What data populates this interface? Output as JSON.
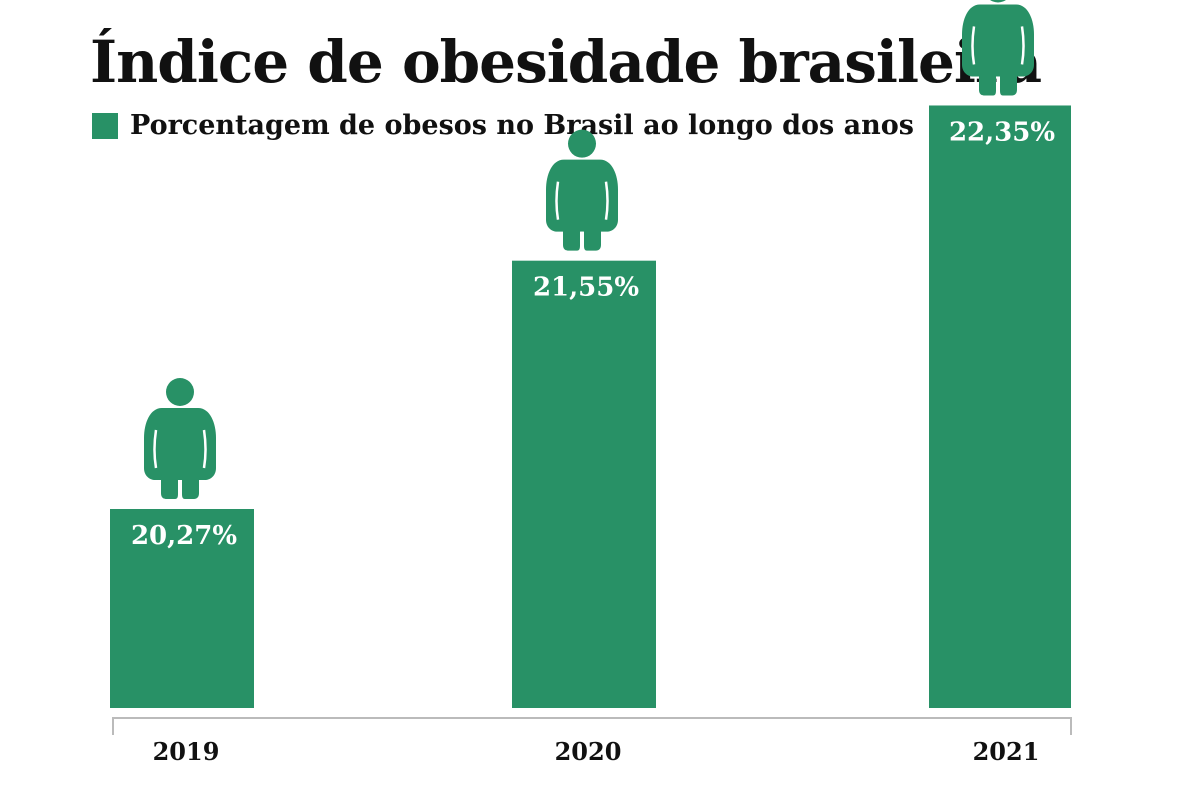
{
  "chart_data": {
    "type": "bar",
    "title": "Índice de obesidade brasileira",
    "legend": "Porcentagem de obesos no Brasil ao longo dos anos",
    "categories": [
      "2019",
      "2020",
      "2021"
    ],
    "series": [
      {
        "name": "Porcentagem de obesos no Brasil ao longo dos anos",
        "values": [
          20.27,
          21.55,
          22.35
        ]
      }
    ],
    "value_labels": [
      "20,27%",
      "21,55%",
      "22,35%"
    ],
    "icon": "obese-person-icon",
    "colors": {
      "bar": "#289166",
      "axis": "#bbbbbb",
      "text": "#111111",
      "label": "#ffffff"
    }
  }
}
